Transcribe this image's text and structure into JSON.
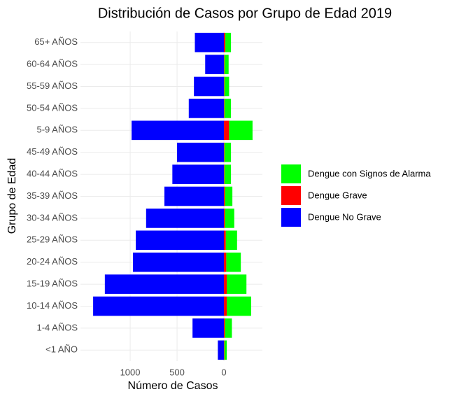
{
  "chart_data": {
    "type": "bar",
    "orientation": "horizontal",
    "stacked": true,
    "title": "Distribución de Casos por Grupo de Edad 2019",
    "x_label": "Número de Casos",
    "y_label": "Grupo de Edad",
    "categories": [
      "65+ AÑOS",
      "60-64 AÑOS",
      "55-59 AÑOS",
      "50-54 AÑOS",
      "5-9 AÑOS",
      "45-49 AÑOS",
      "40-44 AÑOS",
      "35-39 AÑOS",
      "30-34 AÑOS",
      "25-29 AÑOS",
      "20-24 AÑOS",
      "15-19 AÑOS",
      "10-14 AÑOS",
      "1-4 AÑOS",
      "<1 AÑO"
    ],
    "series": [
      {
        "name": "Dengue No Grave",
        "color": "#0000ff",
        "values": [
          -310,
          -200,
          -320,
          -375,
          -985,
          -500,
          -550,
          -635,
          -830,
          -940,
          -970,
          -1270,
          -1395,
          -335,
          -65
        ]
      },
      {
        "name": "Dengue Grave",
        "color": "#ff0000",
        "values": [
          15,
          5,
          5,
          5,
          55,
          5,
          5,
          10,
          10,
          20,
          25,
          30,
          30,
          10,
          5
        ]
      },
      {
        "name": "Dengue con Signos de Alarma",
        "color": "#00ff00",
        "values": [
          60,
          45,
          50,
          70,
          250,
          70,
          70,
          80,
          100,
          120,
          155,
          210,
          260,
          75,
          25
        ]
      }
    ],
    "xlim": [
      -1530,
      410
    ],
    "xticks": [
      {
        "value": -1000,
        "label": "1000"
      },
      {
        "value": -500,
        "label": "500"
      },
      0
    ],
    "grid": true,
    "legend_position": "right"
  }
}
